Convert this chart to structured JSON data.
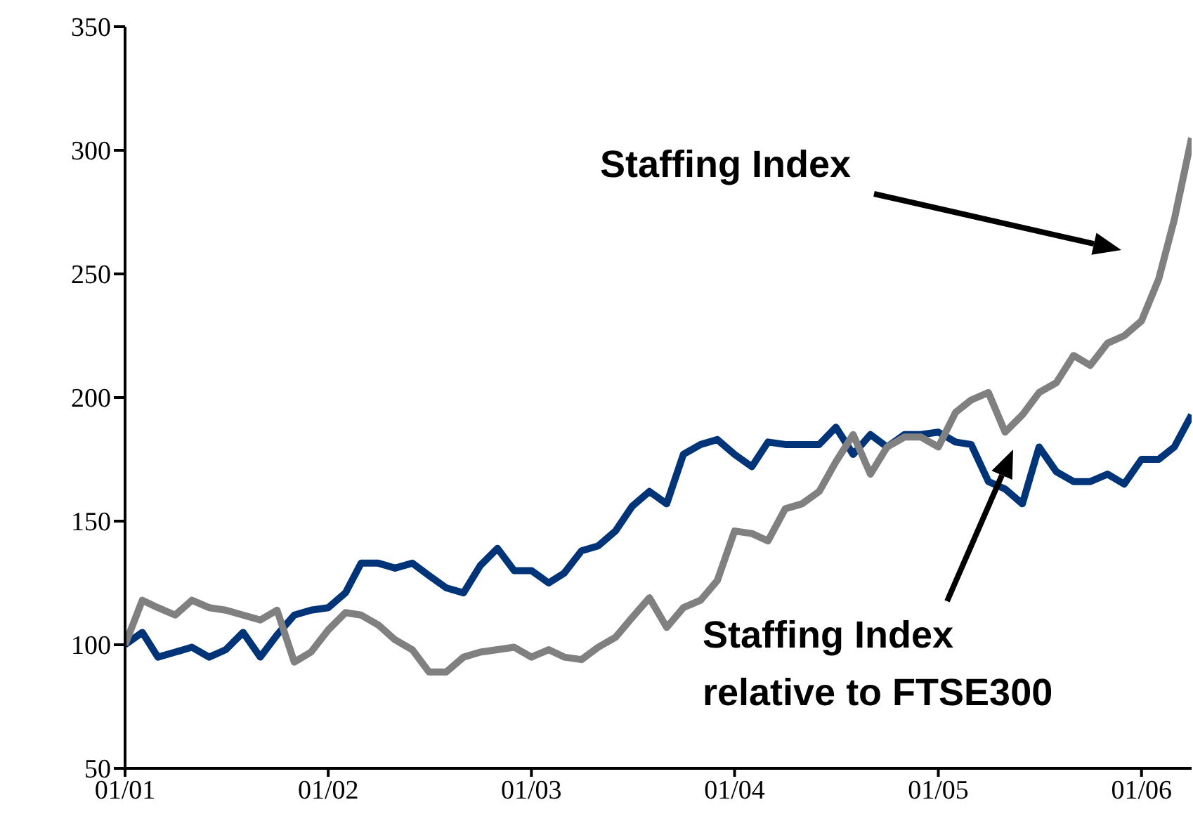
{
  "chart_data": {
    "type": "line",
    "x": [
      "2001-01",
      "2001-02",
      "2001-03",
      "2001-04",
      "2001-05",
      "2001-06",
      "2001-07",
      "2001-08",
      "2001-09",
      "2001-10",
      "2001-11",
      "2001-12",
      "2002-01",
      "2002-02",
      "2002-03",
      "2002-04",
      "2002-05",
      "2002-06",
      "2002-07",
      "2002-08",
      "2002-09",
      "2002-10",
      "2002-11",
      "2002-12",
      "2003-01",
      "2003-02",
      "2003-03",
      "2003-04",
      "2003-05",
      "2003-06",
      "2003-07",
      "2003-08",
      "2003-09",
      "2003-10",
      "2003-11",
      "2003-12",
      "2004-01",
      "2004-02",
      "2004-03",
      "2004-04",
      "2004-05",
      "2004-06",
      "2004-07",
      "2004-08",
      "2004-09",
      "2004-10",
      "2004-11",
      "2004-12",
      "2005-01",
      "2005-02",
      "2005-03",
      "2005-04",
      "2005-05",
      "2005-06",
      "2005-07",
      "2005-08",
      "2005-09",
      "2005-10",
      "2005-11",
      "2005-12",
      "2006-01",
      "2006-02",
      "2006-03",
      "2006-04"
    ],
    "series": [
      {
        "color": "#003478",
        "values": [
          100,
          105,
          95,
          97,
          99,
          95,
          98,
          105,
          95,
          104,
          112,
          114,
          115,
          121,
          133,
          133,
          131,
          133,
          128,
          123,
          121,
          132,
          139,
          130,
          130,
          125,
          129,
          138,
          140,
          146,
          156,
          162,
          157,
          177,
          181,
          183,
          177,
          172,
          182,
          181,
          181,
          181,
          188,
          177,
          185,
          180,
          185,
          185,
          186,
          182,
          181,
          166,
          163,
          157,
          180,
          170,
          166,
          166,
          169,
          165,
          175,
          175,
          180,
          193
        ]
      },
      {
        "color": "#808080",
        "values": [
          100,
          118,
          115,
          112,
          118,
          115,
          114,
          112,
          110,
          114,
          93,
          97,
          106,
          113,
          112,
          108,
          102,
          98,
          89,
          89,
          95,
          97,
          98,
          99,
          95,
          98,
          95,
          94,
          99,
          103,
          111,
          119,
          107,
          115,
          118,
          126,
          146,
          145,
          142,
          155,
          157,
          162,
          174,
          185,
          169,
          180,
          184,
          184,
          180,
          194,
          199,
          202,
          186,
          193,
          202,
          206,
          217,
          213,
          222,
          225,
          231,
          248,
          272,
          305
        ]
      }
    ],
    "xlim": [
      "2001-01",
      "2006-04"
    ],
    "xticks": [
      {
        "value": "2001-01",
        "label": "01/01"
      },
      {
        "value": "2002-01",
        "label": "01/02"
      },
      {
        "value": "2003-01",
        "label": "01/03"
      },
      {
        "value": "2004-01",
        "label": "01/04"
      },
      {
        "value": "2005-01",
        "label": "01/05"
      },
      {
        "value": "2006-01",
        "label": "01/06"
      }
    ],
    "ylim": [
      50,
      350
    ],
    "yticks": [
      50,
      100,
      150,
      200,
      250,
      300,
      350
    ],
    "annotations": [
      "Staffing Index",
      "Staffing Index\nrelative to FTSE300"
    ]
  }
}
